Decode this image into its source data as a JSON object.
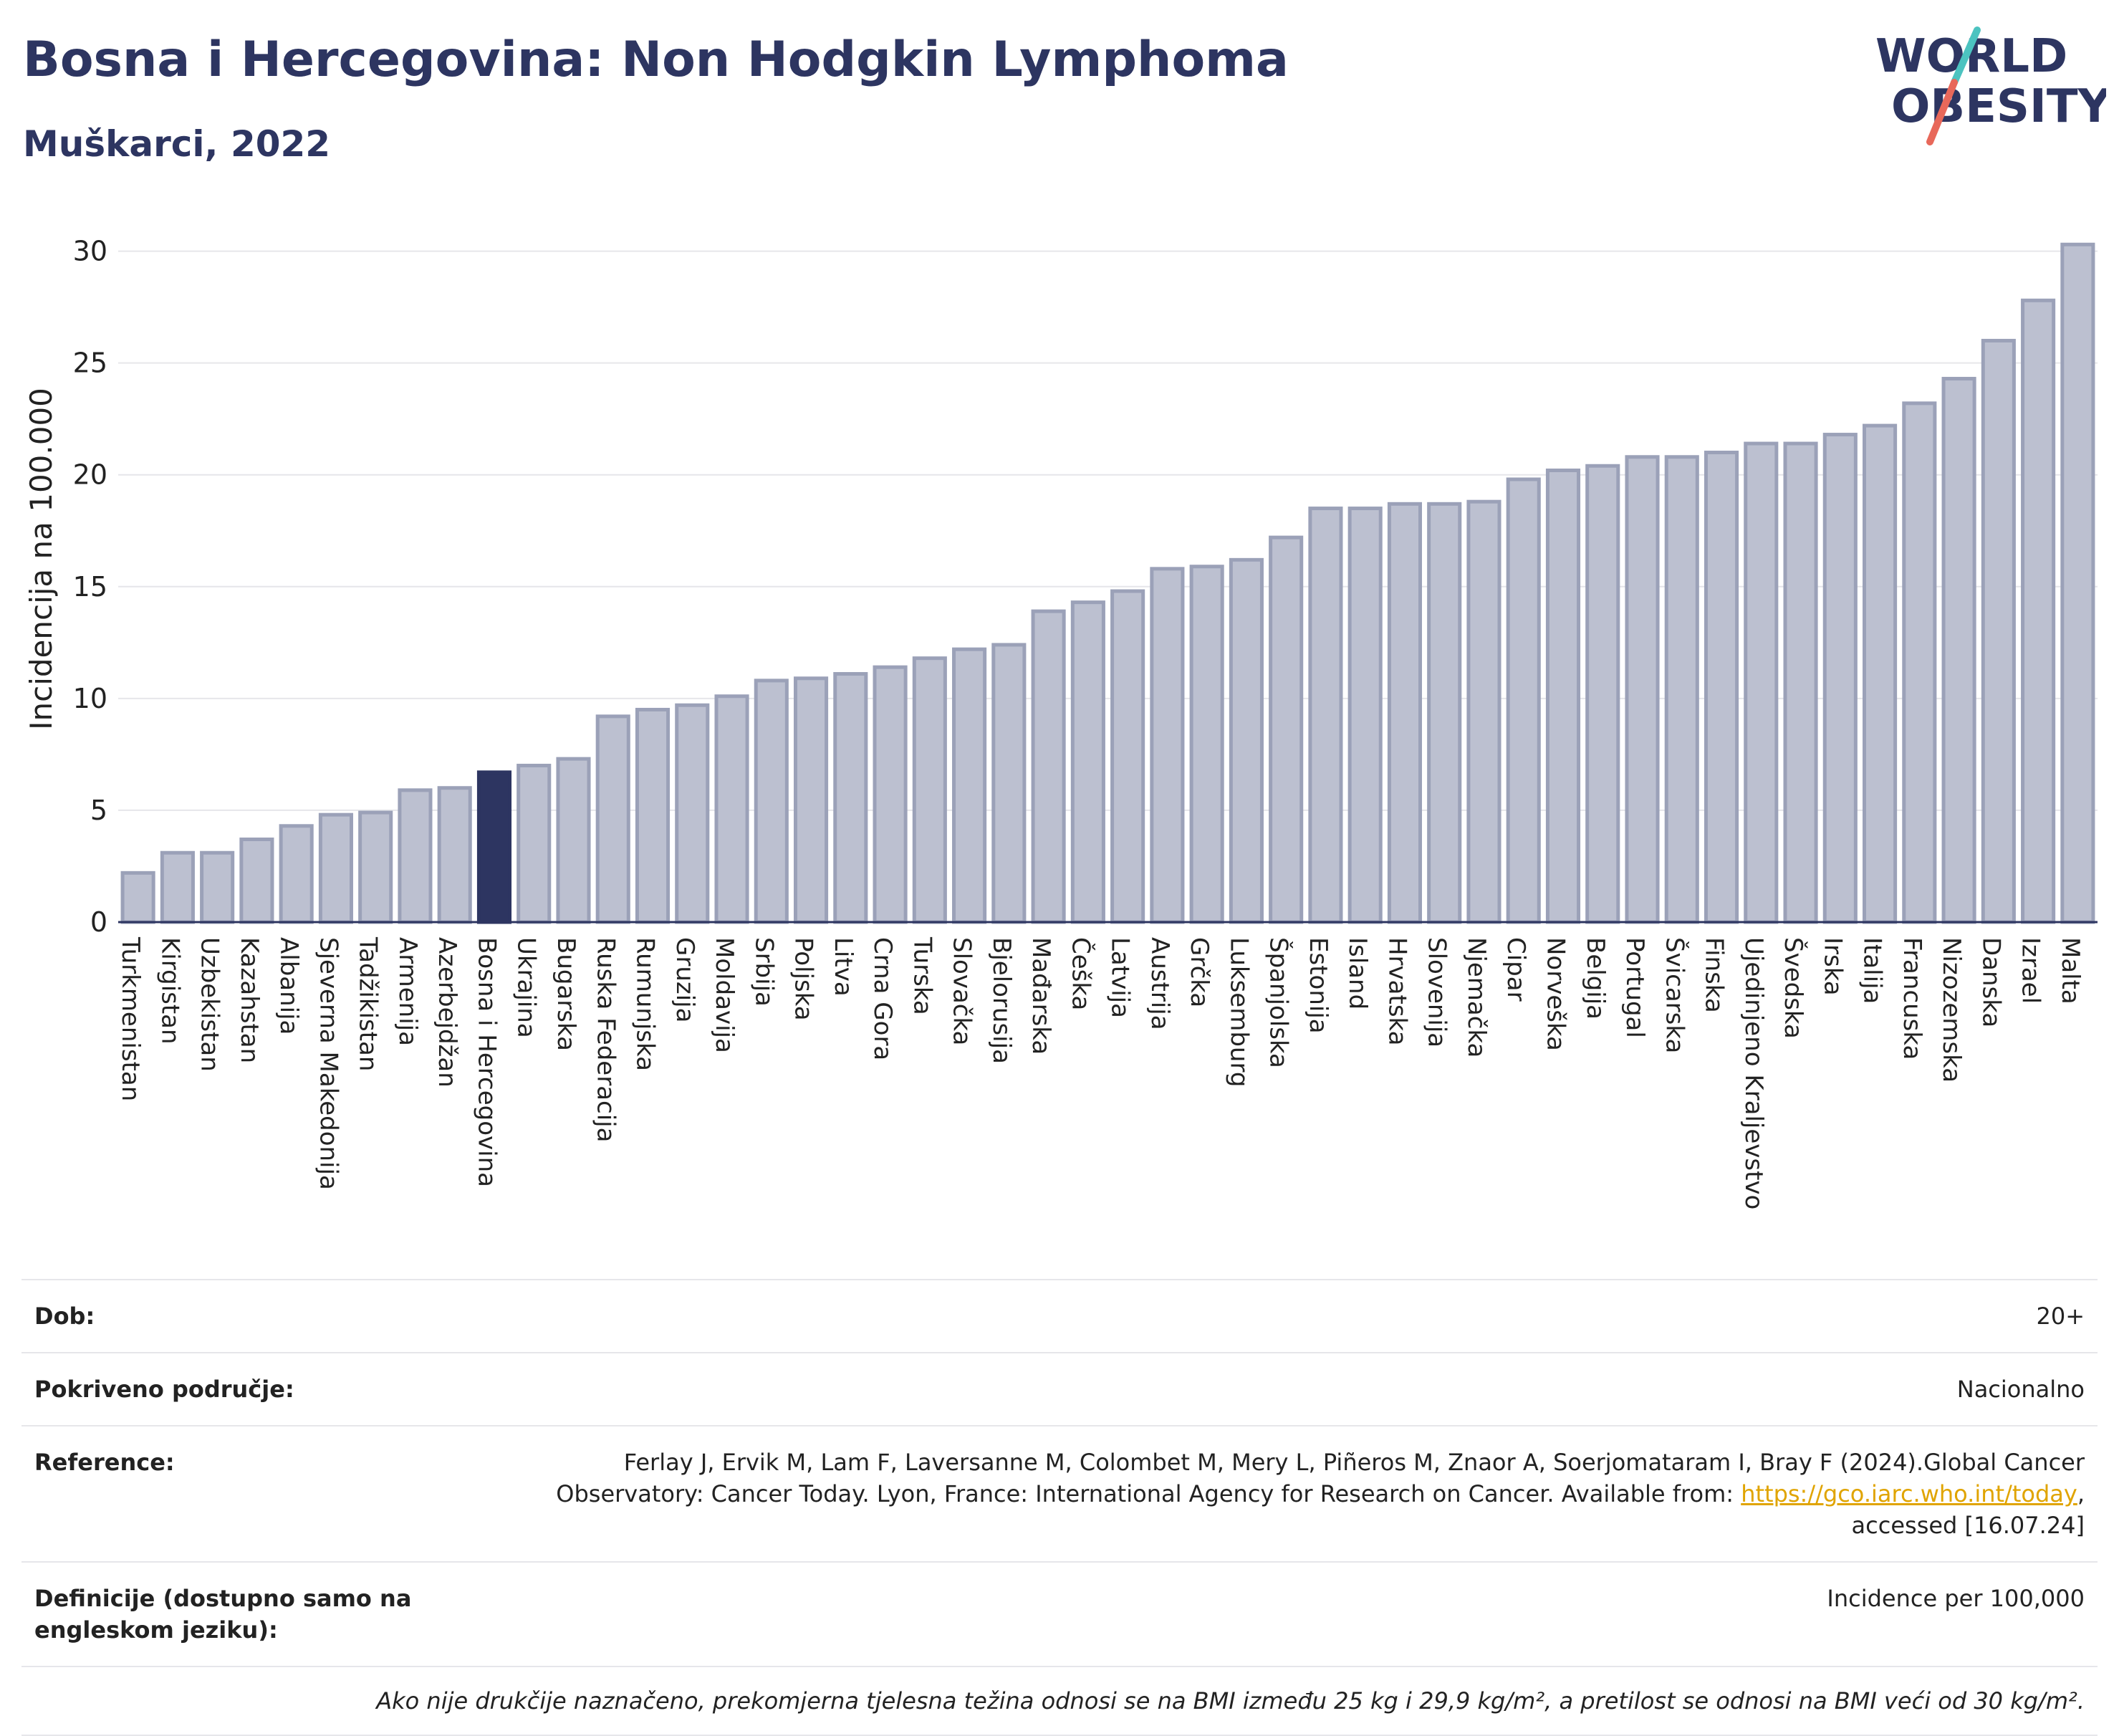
{
  "title": "Bosna i Hercegovina: Non Hodgkin Lymphoma",
  "subtitle": "Muškarci, 2022",
  "logo": {
    "line1": "WORLD",
    "line2": "OBESITY",
    "accent_colors": [
      "#4cc3c0",
      "#e8685a"
    ]
  },
  "colors": {
    "bar": "#bcc0d0",
    "bar_stroke": "#9ba1b8",
    "highlight": "#2d3561",
    "text": "#2d3561"
  },
  "chart_data": {
    "type": "bar",
    "ylabel": "Incidencija na 100.000",
    "ylim": [
      0,
      30.5
    ],
    "yticks": [
      0,
      5,
      10,
      15,
      20,
      25,
      30
    ],
    "grid": true,
    "highlight": "Bosna i Hercegovina",
    "categories": [
      "Turkmenistan",
      "Kirgistan",
      "Uzbekistan",
      "Kazahstan",
      "Albanija",
      "Sjeverna Makedonija",
      "Tadžikistan",
      "Armenija",
      "Azerbejdžan",
      "Bosna i Hercegovina",
      "Ukrajina",
      "Bugarska",
      "Ruska Federacija",
      "Rumunjska",
      "Gruzija",
      "Moldavija",
      "Srbija",
      "Poljska",
      "Litva",
      "Crna Gora",
      "Turska",
      "Slovačka",
      "Bjelorusija",
      "Mađarska",
      "Češka",
      "Latvija",
      "Austrija",
      "Grčka",
      "Luksemburg",
      "Španjolska",
      "Estonija",
      "Island",
      "Hrvatska",
      "Slovenija",
      "Njemačka",
      "Cipar",
      "Norveška",
      "Belgija",
      "Portugal",
      "Švicarska",
      "Finska",
      "Ujedinjeno Kraljevstvo",
      "Švedska",
      "Irska",
      "Italija",
      "Francuska",
      "Nizozemska",
      "Danska",
      "Izrael",
      "Malta"
    ],
    "values": [
      2.2,
      3.1,
      3.1,
      3.7,
      4.3,
      4.8,
      4.9,
      5.9,
      6.0,
      6.7,
      7.0,
      7.3,
      9.2,
      9.5,
      9.7,
      10.1,
      10.8,
      10.9,
      11.1,
      11.4,
      11.8,
      12.2,
      12.4,
      13.9,
      14.3,
      14.8,
      15.8,
      15.9,
      16.2,
      17.2,
      18.5,
      18.5,
      18.7,
      18.7,
      18.8,
      19.8,
      20.2,
      20.4,
      20.8,
      20.8,
      21.0,
      21.4,
      21.4,
      21.8,
      22.2,
      23.2,
      24.3,
      26.0,
      27.8,
      30.3
    ]
  },
  "info": {
    "dob_label": "Dob:",
    "dob_value": "20+",
    "coverage_label": "Pokriveno područje:",
    "coverage_value": "Nacionalno",
    "reference_label": "Reference:",
    "reference_text1": "Ferlay J, Ervik M, Lam F, Laversanne M, Colombet M, Mery L, Piñeros M, Znaor A, Soerjomataram I, Bray F (2024).Global Cancer",
    "reference_text2": "Observatory: Cancer Today. Lyon, France: International Agency for Research on Cancer. Available from: ",
    "reference_link": "https://gco.iarc.who.int/today",
    "reference_text3": ",",
    "reference_text4": "accessed [16.07.24]",
    "definitions_label": "Definicije (dostupno samo na engleskom jeziku):",
    "definitions_value": "Incidence per 100,000",
    "note": "Ako nije drukčije naznačeno, prekomjerna tjelesna težina odnosi se na BMI između 25 kg i 29,9 kg/m², a pretilost se odnosi na BMI veći od 30 kg/m²."
  }
}
